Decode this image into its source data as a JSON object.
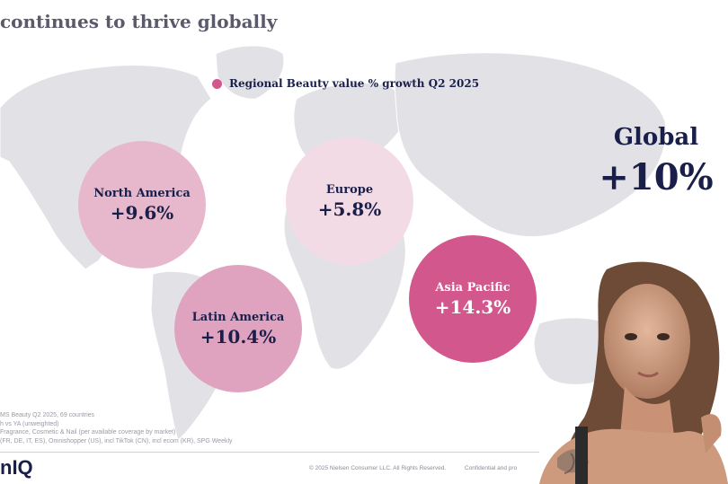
{
  "title": "continues to thrive globally",
  "legend": {
    "label": "Regional Beauty value % growth Q2 2025",
    "color": "#d1578c"
  },
  "regions": [
    {
      "name": "North America",
      "value": "+9.6%",
      "color": "#e7b8cc"
    },
    {
      "name": "Europe",
      "value": "+5.8%",
      "color": "#f3dbe6"
    },
    {
      "name": "Latin America",
      "value": "+10.4%",
      "color": "#dfa3bf"
    },
    {
      "name": "Asia Pacific",
      "value": "+14.3%",
      "color": "#d1578c"
    }
  ],
  "global": {
    "label": "Global",
    "value": "+10%"
  },
  "notes": [
    "MS Beauty Q2 2025, 69 countries",
    "h vs YA (unweighted)",
    "Fragrance, Cosmetic & Nail (per available coverage by market)",
    "(FR, DE, IT, ES), Omnishopper (US), incl TikTok (CN), incl ecom (KR), SPG Weekly"
  ],
  "footer": {
    "logo": "nIQ",
    "copyright": "© 2025 Nielsen Consumer LLC. All Rights Reserved.",
    "confidential": "Confidential and pro"
  }
}
